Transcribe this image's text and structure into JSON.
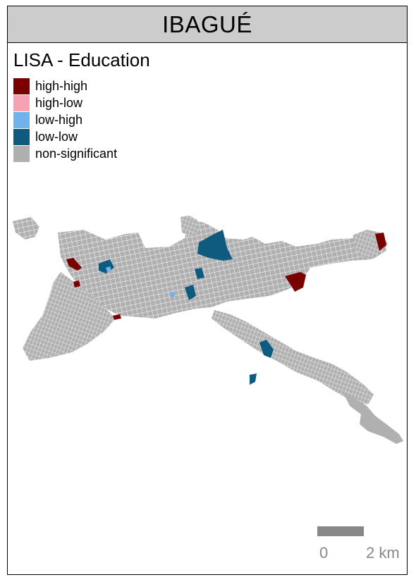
{
  "title": "IBAGUÉ",
  "legend": {
    "title": "LISA - Education",
    "items": [
      {
        "label": "high-high",
        "color": "#7a0000"
      },
      {
        "label": "high-low",
        "color": "#f4a3b5"
      },
      {
        "label": "low-high",
        "color": "#6fb3ea"
      },
      {
        "label": "low-low",
        "color": "#0f5b80"
      },
      {
        "label": "non-significant",
        "color": "#b0b0b0"
      }
    ]
  },
  "scale_bar": {
    "start_label": "0",
    "end_label": "2 km",
    "color": "#888888"
  },
  "colors": {
    "urban_blocks": "#b0b0b0",
    "street_lines": "#ffffff",
    "high_high": "#7a0000",
    "low_low": "#0f5b80",
    "low_high": "#6fb3ea"
  }
}
